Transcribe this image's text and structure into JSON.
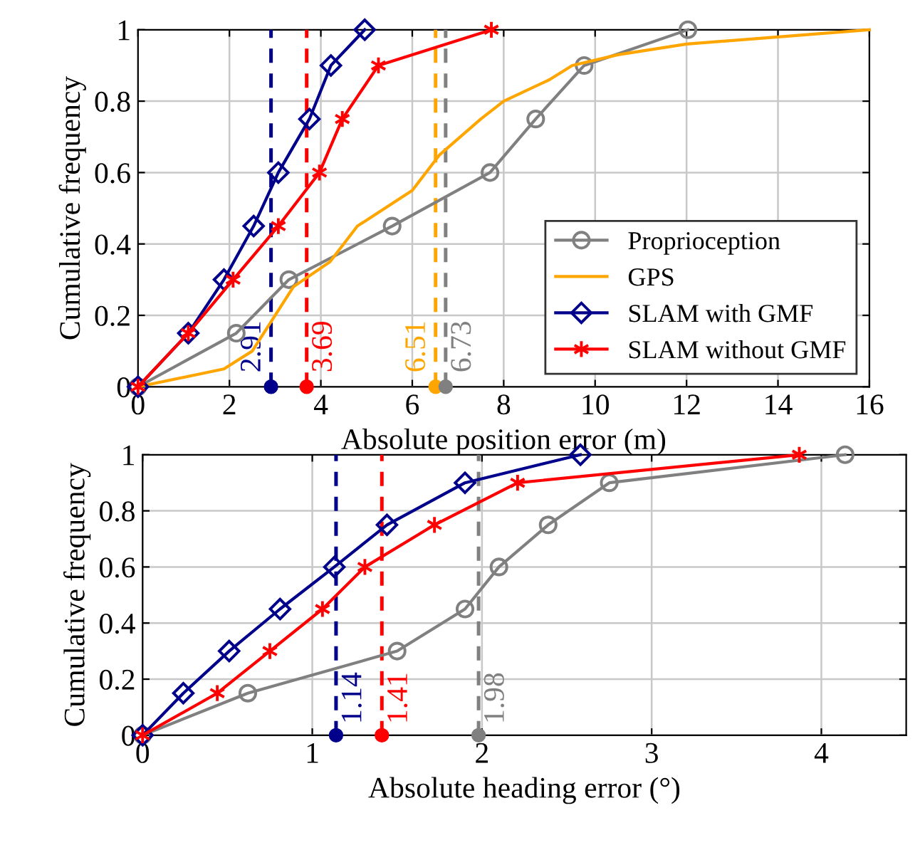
{
  "chart_data": [
    {
      "type": "line",
      "xlabel": "Absolute position error (m)",
      "ylabel": "Cumulative frequency",
      "xlim": [
        0,
        16
      ],
      "ylim": [
        0,
        1
      ],
      "xticks": [
        0,
        2,
        4,
        6,
        8,
        10,
        12,
        14,
        16
      ],
      "yticks": [
        0,
        0.2,
        0.4,
        0.6,
        0.8,
        1
      ],
      "grid": true,
      "legend": "bottom right",
      "series": [
        {
          "name": "Proprioception",
          "color": "#808080",
          "marker": "circle",
          "x": [
            0,
            2.15,
            3.3,
            5.56,
            7.7,
            8.7,
            9.76,
            12.03
          ],
          "values": [
            0,
            0.15,
            0.3,
            0.45,
            0.6,
            0.75,
            0.9,
            1
          ]
        },
        {
          "name": "GPS",
          "color": "#ffa500",
          "marker": "none",
          "x": [
            0,
            1.88,
            2.5,
            3.4,
            4.2,
            4.8,
            6,
            6.6,
            7.5,
            8,
            9,
            9.5,
            10.5,
            12,
            14,
            16
          ],
          "values": [
            0,
            0.05,
            0.1,
            0.28,
            0.35,
            0.45,
            0.55,
            0.65,
            0.75,
            0.8,
            0.86,
            0.9,
            0.93,
            0.96,
            0.98,
            1
          ]
        },
        {
          "name": "SLAM with GMF",
          "color": "#00008b",
          "marker": "diamond",
          "x": [
            0,
            1.1,
            1.88,
            2.53,
            3.07,
            3.75,
            4.22,
            4.96
          ],
          "values": [
            0,
            0.15,
            0.3,
            0.45,
            0.6,
            0.75,
            0.9,
            1
          ]
        },
        {
          "name": "SLAM without GMF",
          "color": "#ff0000",
          "marker": "cross",
          "x": [
            0,
            1.1,
            2.08,
            3.07,
            3.97,
            4.47,
            5.26,
            7.73
          ],
          "values": [
            0,
            0.15,
            0.3,
            0.45,
            0.6,
            0.75,
            0.9,
            1
          ]
        },
        {
          "type": "scatter",
          "marker": "circle",
          "x": [
            2.91,
            3.69,
            6.51,
            6.73
          ],
          "values": [
            0,
            0,
            0,
            0
          ],
          "colors": [
            "#00008b",
            "#ff0000",
            "#ffa500",
            "#808080"
          ]
        }
      ],
      "ref_lines": [
        {
          "axis": "x",
          "value": 2.91,
          "label": "2.91",
          "color": "#00008b",
          "line_style": "dashed"
        },
        {
          "axis": "x",
          "value": 3.69,
          "label": "3.69",
          "color": "#ff0000",
          "line_style": "dashed"
        },
        {
          "axis": "x",
          "value": 6.51,
          "label": "6.51",
          "color": "#ffa500",
          "line_style": "dashed"
        },
        {
          "axis": "x",
          "value": 6.73,
          "label": "6.73",
          "color": "#808080",
          "line_style": "dashed"
        }
      ]
    },
    {
      "type": "line",
      "xlabel": "Absolute heading error (°)",
      "ylabel": "Cumulative frequency",
      "xlim": [
        0,
        4.5
      ],
      "ylim": [
        0,
        1
      ],
      "xticks": [
        0,
        1,
        2,
        3,
        4
      ],
      "yticks": [
        0,
        0.2,
        0.4,
        0.6,
        0.8,
        1
      ],
      "grid": true,
      "series": [
        {
          "color": "#808080",
          "marker": "circle",
          "x": [
            0,
            0.62,
            1.5,
            1.9,
            2.1,
            2.39,
            2.75,
            4.14
          ],
          "values": [
            0,
            0.15,
            0.3,
            0.45,
            0.6,
            0.75,
            0.9,
            1
          ]
        },
        {
          "color": "#00008b",
          "marker": "diamond",
          "x": [
            0,
            0.24,
            0.51,
            0.81,
            1.13,
            1.44,
            1.9,
            2.58
          ],
          "values": [
            0,
            0.15,
            0.3,
            0.45,
            0.6,
            0.75,
            0.9,
            1
          ]
        },
        {
          "color": "#ff0000",
          "marker": "cross",
          "x": [
            0,
            0.44,
            0.75,
            1.06,
            1.31,
            1.72,
            2.21,
            3.87
          ],
          "values": [
            0,
            0.15,
            0.3,
            0.45,
            0.6,
            0.75,
            0.9,
            1
          ]
        },
        {
          "type": "scatter",
          "marker": "circle",
          "x": [
            1.14,
            1.41,
            1.98
          ],
          "values": [
            0,
            0,
            0
          ],
          "colors": [
            "#00008b",
            "#ff0000",
            "#808080"
          ]
        }
      ],
      "ref_lines": [
        {
          "axis": "x",
          "value": 1.14,
          "label": "1.14",
          "color": "#00008b",
          "line_style": "dashed"
        },
        {
          "axis": "x",
          "value": 1.41,
          "label": "1.41",
          "color": "#ff0000",
          "line_style": "dashed"
        },
        {
          "axis": "x",
          "value": 1.98,
          "label": "1.98",
          "color": "#808080",
          "line_style": "dashed"
        }
      ]
    }
  ]
}
